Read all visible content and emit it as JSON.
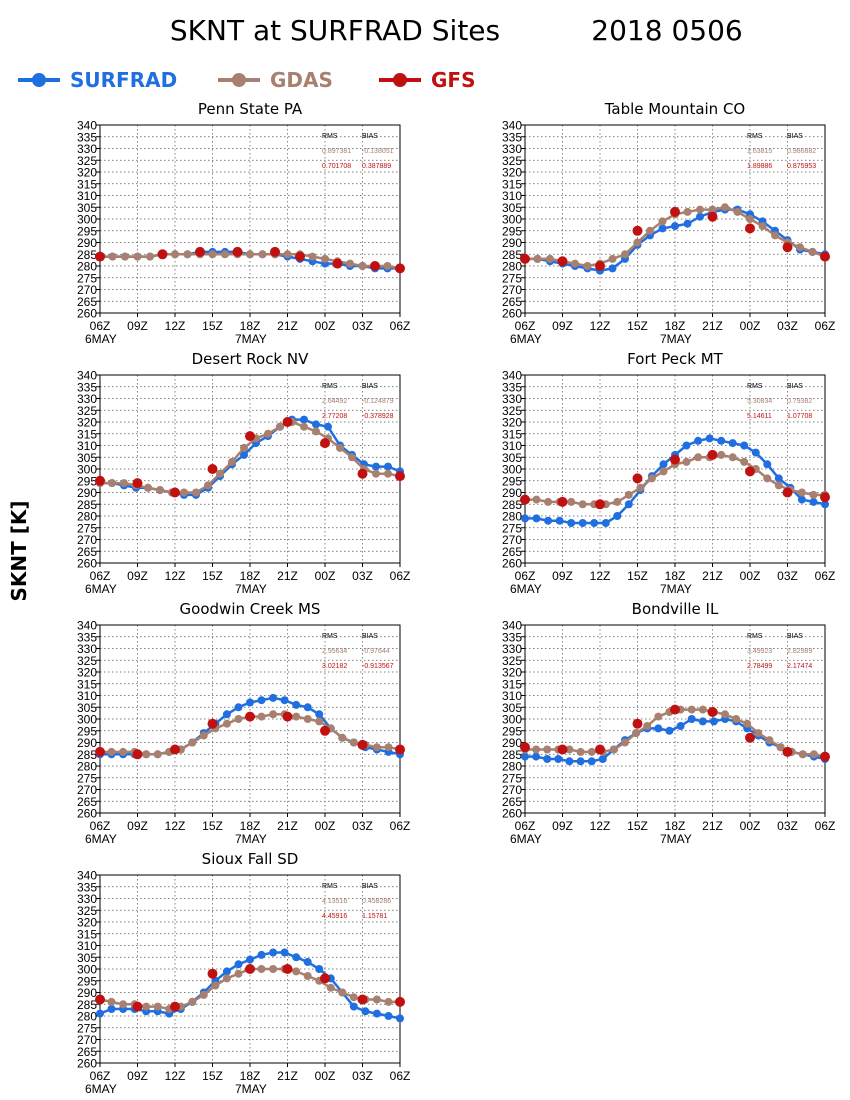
{
  "header": {
    "title": "SKNT at SURFRAD Sites",
    "date": "2018 0506"
  },
  "ylabel": "SKNT [K]",
  "legend": [
    {
      "name": "SURFRAD",
      "color": "#1f6fe0"
    },
    {
      "name": "GDAS",
      "color": "#a8806f"
    },
    {
      "name": "GFS",
      "color": "#c01010"
    }
  ],
  "stats_headers": {
    "rms": "RMS",
    "bias": "BIAS"
  },
  "chart_data": [
    {
      "type": "line",
      "title": "Penn State PA",
      "ylim": [
        260,
        340
      ],
      "yticks": [
        260,
        265,
        270,
        275,
        280,
        285,
        290,
        295,
        300,
        305,
        310,
        315,
        320,
        325,
        330,
        335,
        340
      ],
      "xticks": [
        "06Z",
        "09Z",
        "12Z",
        "15Z",
        "18Z",
        "21Z",
        "00Z",
        "03Z",
        "06Z"
      ],
      "xsub": {
        "start": "6MAY",
        "mid": "7MAY"
      },
      "grid": true,
      "stats": {
        "gdas": {
          "rms": "0.897381",
          "bias": "-0.138051"
        },
        "gfs": {
          "rms": "0.701708",
          "bias": "0.387889"
        }
      },
      "series": [
        {
          "name": "SURFRAD",
          "values": [
            284,
            284,
            284,
            284,
            284,
            285,
            285,
            285,
            286,
            286,
            286,
            286,
            285,
            285,
            285,
            284,
            283,
            282,
            281,
            281,
            280,
            280,
            279,
            279,
            279
          ]
        },
        {
          "name": "GDAS",
          "values": [
            284,
            284,
            284,
            284,
            284,
            285,
            285,
            285,
            285,
            285,
            285,
            285,
            285,
            285,
            285,
            285,
            285,
            284,
            283,
            282,
            281,
            280,
            280,
            280,
            279
          ]
        },
        {
          "name": "GFS",
          "values": [
            284,
            null,
            null,
            null,
            null,
            285,
            null,
            null,
            286,
            null,
            null,
            286,
            null,
            null,
            286,
            null,
            284,
            null,
            null,
            281,
            null,
            null,
            280,
            null,
            279
          ]
        }
      ]
    },
    {
      "type": "line",
      "title": "Table Mountain CO",
      "ylim": [
        260,
        340
      ],
      "yticks": [
        260,
        265,
        270,
        275,
        280,
        285,
        290,
        295,
        300,
        305,
        310,
        315,
        320,
        325,
        330,
        335,
        340
      ],
      "xticks": [
        "06Z",
        "09Z",
        "12Z",
        "15Z",
        "18Z",
        "21Z",
        "00Z",
        "03Z",
        "06Z"
      ],
      "xsub": {
        "start": "6MAY",
        "mid": "7MAY"
      },
      "grid": true,
      "stats": {
        "gdas": {
          "rms": "1.63815",
          "bias": "0.986882"
        },
        "gfs": {
          "rms": "1.89886",
          "bias": "0.875953"
        }
      },
      "series": [
        {
          "name": "SURFRAD",
          "values": [
            283,
            283,
            282,
            281,
            280,
            279,
            278,
            279,
            283,
            289,
            293,
            296,
            297,
            298,
            301,
            303,
            304,
            304,
            302,
            299,
            295,
            291,
            287,
            286,
            285
          ]
        },
        {
          "name": "GDAS",
          "values": [
            283,
            283,
            283,
            282,
            281,
            280,
            281,
            283,
            285,
            290,
            295,
            299,
            302,
            303,
            304,
            304,
            305,
            303,
            300,
            297,
            293,
            290,
            288,
            286,
            284
          ]
        },
        {
          "name": "GFS",
          "values": [
            283,
            null,
            null,
            282,
            null,
            null,
            280,
            null,
            null,
            295,
            null,
            null,
            303,
            null,
            null,
            301,
            null,
            null,
            296,
            null,
            null,
            288,
            null,
            null,
            284
          ]
        }
      ]
    },
    {
      "type": "line",
      "title": "Desert Rock NV",
      "ylim": [
        260,
        340
      ],
      "yticks": [
        260,
        265,
        270,
        275,
        280,
        285,
        290,
        295,
        300,
        305,
        310,
        315,
        320,
        325,
        330,
        335,
        340
      ],
      "xticks": [
        "06Z",
        "09Z",
        "12Z",
        "15Z",
        "18Z",
        "21Z",
        "00Z",
        "03Z",
        "06Z"
      ],
      "xsub": {
        "start": "6MAY",
        "mid": "7MAY"
      },
      "grid": true,
      "stats": {
        "gdas": {
          "rms": "2.64492",
          "bias": "-0.124879"
        },
        "gfs": {
          "rms": "2.77208",
          "bias": "-0.378928"
        }
      },
      "series": [
        {
          "name": "SURFRAD",
          "values": [
            294,
            294,
            293,
            292,
            292,
            291,
            290,
            289,
            289,
            292,
            297,
            302,
            306,
            311,
            314,
            318,
            321,
            321,
            319,
            318,
            310,
            306,
            302,
            301,
            301,
            299
          ]
        },
        {
          "name": "GDAS",
          "values": [
            294,
            294,
            294,
            293,
            292,
            291,
            290,
            290,
            290,
            293,
            298,
            303,
            309,
            313,
            315,
            318,
            320,
            318,
            316,
            313,
            309,
            305,
            300,
            298,
            298,
            297
          ]
        },
        {
          "name": "GFS",
          "values": [
            295,
            null,
            null,
            294,
            null,
            null,
            290,
            null,
            null,
            300,
            null,
            null,
            314,
            null,
            null,
            320,
            null,
            null,
            311,
            null,
            null,
            298,
            null,
            null,
            297
          ]
        }
      ]
    },
    {
      "type": "line",
      "title": "Fort Peck MT",
      "ylim": [
        260,
        340
      ],
      "yticks": [
        260,
        265,
        270,
        275,
        280,
        285,
        290,
        295,
        300,
        305,
        310,
        315,
        320,
        325,
        330,
        335,
        340
      ],
      "xticks": [
        "06Z",
        "09Z",
        "12Z",
        "15Z",
        "18Z",
        "21Z",
        "00Z",
        "03Z",
        "06Z"
      ],
      "xsub": {
        "start": "6MAY",
        "mid": "7MAY"
      },
      "grid": true,
      "stats": {
        "gdas": {
          "rms": "5.30834",
          "bias": "0.79382"
        },
        "gfs": {
          "rms": "5.14611",
          "bias": "1.07708"
        }
      },
      "series": [
        {
          "name": "SURFRAD",
          "values": [
            279,
            279,
            278,
            278,
            277,
            277,
            277,
            277,
            280,
            285,
            291,
            297,
            302,
            306,
            310,
            312,
            313,
            312,
            311,
            310,
            307,
            302,
            296,
            292,
            287,
            286,
            285
          ]
        },
        {
          "name": "GDAS",
          "values": [
            287,
            287,
            286,
            286,
            286,
            285,
            285,
            285,
            286,
            289,
            292,
            296,
            299,
            302,
            303,
            305,
            305,
            306,
            305,
            303,
            300,
            296,
            293,
            291,
            290,
            289,
            289
          ]
        },
        {
          "name": "GFS",
          "values": [
            287,
            null,
            null,
            286,
            null,
            null,
            285,
            null,
            null,
            296,
            null,
            null,
            304,
            null,
            null,
            306,
            null,
            null,
            299,
            null,
            null,
            290,
            null,
            null,
            288
          ]
        }
      ]
    },
    {
      "type": "line",
      "title": "Goodwin Creek MS",
      "ylim": [
        260,
        340
      ],
      "yticks": [
        260,
        265,
        270,
        275,
        280,
        285,
        290,
        295,
        300,
        305,
        310,
        315,
        320,
        325,
        330,
        335,
        340
      ],
      "xticks": [
        "06Z",
        "09Z",
        "12Z",
        "15Z",
        "18Z",
        "21Z",
        "00Z",
        "03Z",
        "06Z"
      ],
      "xsub": {
        "start": "6MAY",
        "mid": "7MAY"
      },
      "grid": true,
      "stats": {
        "gdas": {
          "rms": "2.95634",
          "bias": "-0.97644"
        },
        "gfs": {
          "rms": "3.02182",
          "bias": "-0.913567"
        }
      },
      "series": [
        {
          "name": "SURFRAD",
          "values": [
            285,
            285,
            285,
            285,
            285,
            285,
            286,
            287,
            290,
            294,
            298,
            302,
            305,
            307,
            308,
            309,
            308,
            306,
            305,
            302,
            296,
            292,
            290,
            288,
            287,
            286,
            285
          ]
        },
        {
          "name": "GDAS",
          "values": [
            286,
            286,
            286,
            286,
            285,
            285,
            286,
            287,
            290,
            293,
            296,
            298,
            300,
            301,
            301,
            302,
            302,
            301,
            300,
            299,
            296,
            292,
            290,
            289,
            288,
            288,
            287
          ]
        },
        {
          "name": "GFS",
          "values": [
            286,
            null,
            null,
            285,
            null,
            null,
            287,
            null,
            null,
            298,
            null,
            null,
            301,
            null,
            null,
            301,
            null,
            null,
            295,
            null,
            null,
            289,
            null,
            null,
            287
          ]
        }
      ]
    },
    {
      "type": "line",
      "title": "Bondville IL",
      "ylim": [
        260,
        340
      ],
      "yticks": [
        260,
        265,
        270,
        275,
        280,
        285,
        290,
        295,
        300,
        305,
        310,
        315,
        320,
        325,
        330,
        335,
        340
      ],
      "xticks": [
        "06Z",
        "09Z",
        "12Z",
        "15Z",
        "18Z",
        "21Z",
        "00Z",
        "03Z",
        "06Z"
      ],
      "xsub": {
        "start": "6MAY",
        "mid": "7MAY"
      },
      "grid": true,
      "stats": {
        "gdas": {
          "rms": "3.49923",
          "bias": "2.82989"
        },
        "gfs": {
          "rms": "2.78499",
          "bias": "2.17474"
        }
      },
      "series": [
        {
          "name": "SURFRAD",
          "values": [
            284,
            284,
            283,
            283,
            282,
            282,
            282,
            283,
            287,
            291,
            294,
            296,
            296,
            295,
            297,
            300,
            299,
            299,
            300,
            299,
            296,
            293,
            290,
            288,
            286,
            285,
            284,
            283
          ]
        },
        {
          "name": "GDAS",
          "values": [
            287,
            287,
            287,
            287,
            287,
            286,
            286,
            286,
            287,
            290,
            294,
            297,
            301,
            303,
            304,
            304,
            304,
            303,
            302,
            300,
            298,
            294,
            291,
            288,
            286,
            285,
            285,
            284
          ]
        },
        {
          "name": "GFS",
          "values": [
            288,
            null,
            null,
            287,
            null,
            null,
            287,
            null,
            null,
            298,
            null,
            null,
            304,
            null,
            null,
            303,
            null,
            null,
            292,
            null,
            null,
            286,
            null,
            null,
            284
          ]
        }
      ]
    },
    {
      "type": "line",
      "title": "Sioux Fall SD",
      "ylim": [
        260,
        340
      ],
      "yticks": [
        260,
        265,
        270,
        275,
        280,
        285,
        290,
        295,
        300,
        305,
        310,
        315,
        320,
        325,
        330,
        335,
        340
      ],
      "xticks": [
        "06Z",
        "09Z",
        "12Z",
        "15Z",
        "18Z",
        "21Z",
        "00Z",
        "03Z",
        "06Z"
      ],
      "xsub": {
        "start": "6MAY",
        "mid": "7MAY"
      },
      "grid": true,
      "stats": {
        "gdas": {
          "rms": "4.13516",
          "bias": "0.458286"
        },
        "gfs": {
          "rms": "4.45916",
          "bias": "1.15781"
        }
      },
      "series": [
        {
          "name": "SURFRAD",
          "values": [
            281,
            283,
            283,
            283,
            282,
            282,
            281,
            283,
            286,
            290,
            295,
            299,
            302,
            304,
            306,
            307,
            307,
            305,
            303,
            300,
            296,
            290,
            284,
            282,
            281,
            280,
            279
          ]
        },
        {
          "name": "GDAS",
          "values": [
            287,
            286,
            285,
            285,
            284,
            284,
            283,
            284,
            286,
            289,
            293,
            296,
            298,
            300,
            300,
            300,
            300,
            299,
            297,
            295,
            292,
            290,
            288,
            287,
            287,
            286,
            286
          ]
        },
        {
          "name": "GFS",
          "values": [
            287,
            null,
            null,
            284,
            null,
            null,
            284,
            null,
            null,
            298,
            null,
            null,
            300,
            null,
            null,
            300,
            null,
            null,
            296,
            null,
            null,
            287,
            null,
            null,
            286
          ]
        }
      ]
    }
  ]
}
